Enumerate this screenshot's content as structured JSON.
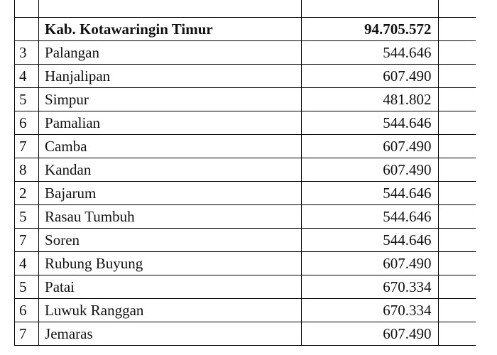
{
  "header": {
    "name": "Kab. Kotawaringin Timur",
    "value": "94.705.572"
  },
  "rows": [
    {
      "idx": "3",
      "name": "Palangan",
      "value": "544.646"
    },
    {
      "idx": "4",
      "name": "Hanjalipan",
      "value": "607.490"
    },
    {
      "idx": "5",
      "name": "Simpur",
      "value": "481.802"
    },
    {
      "idx": "6",
      "name": "Pamalian",
      "value": "544.646"
    },
    {
      "idx": "7",
      "name": "Camba",
      "value": "607.490"
    },
    {
      "idx": "8",
      "name": "Kandan",
      "value": "607.490"
    },
    {
      "idx": "2",
      "name": "Bajarum",
      "value": "544.646"
    },
    {
      "idx": "5",
      "name": "Rasau Tumbuh",
      "value": "544.646"
    },
    {
      "idx": "7",
      "name": "Soren",
      "value": "544.646"
    },
    {
      "idx": "4",
      "name": "Rubung Buyung",
      "value": "607.490"
    },
    {
      "idx": "5",
      "name": "Patai",
      "value": "670.334"
    },
    {
      "idx": "6",
      "name": "Luwuk Ranggan",
      "value": "670.334"
    },
    {
      "idx": "7",
      "name": "Jemaras",
      "value": "607.490"
    }
  ],
  "style": {
    "font_family": "Bookman Old Style",
    "font_size_pt": 16,
    "border_color": "#000000",
    "background": "#ffffff",
    "text_color": "#111111"
  }
}
